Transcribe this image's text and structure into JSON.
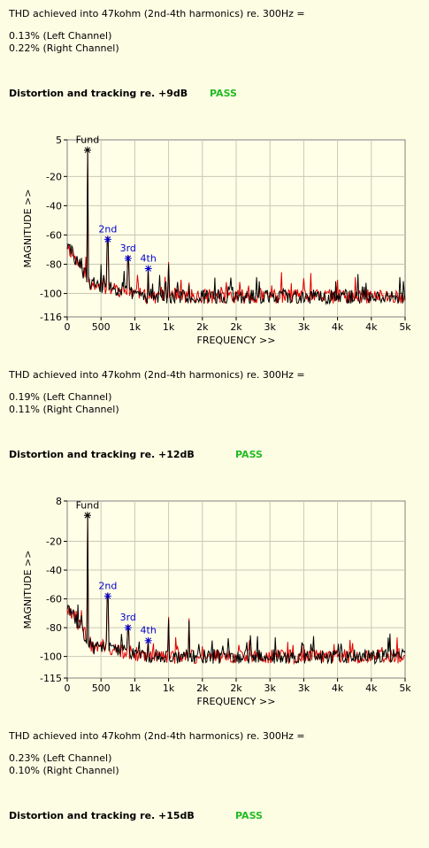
{
  "sections": [
    {
      "thd_title": "THD achieved into 47kohm (2nd-4th harmonics) re. 300Hz =",
      "left": "0.13% (Left Channel)",
      "right": "0.22% (Right Channel)",
      "heading": "Distortion and tracking re. +9dB",
      "status": "PASS"
    },
    {
      "thd_title": "THD achieved into 47kohm (2nd-4th harmonics) re. 300Hz =",
      "left": "0.19% (Left Channel)",
      "right": "0.11% (Right Channel)",
      "heading": "Distortion and tracking re. +12dB",
      "status": "PASS"
    },
    {
      "thd_title": "THD achieved into 47kohm (2nd-4th harmonics) re. 300Hz =",
      "left": "0.23% (Left Channel)",
      "right": "0.10% (Right Channel)",
      "heading": "Distortion and tracking re. +15dB",
      "status": "PASS"
    }
  ],
  "colors": {
    "background": "#fdfde4",
    "plot_area": "#ffffe8",
    "left_trace": "#e00000",
    "right_trace": "#000000",
    "marker_label": "#0000cc",
    "pass": "#22bb22"
  },
  "chart_data": [
    {
      "type": "line",
      "xlabel": "FREQUENCY >>",
      "ylabel": "MAGNITUDE >>",
      "xlim": [
        0,
        5000
      ],
      "ylim": [
        -116,
        5
      ],
      "x_ticks": [
        0,
        500,
        1000,
        1500,
        2000,
        2500,
        3000,
        3500,
        4000,
        4500,
        5000
      ],
      "x_tick_labels": [
        "0",
        "500",
        "1k",
        "1k",
        "2k",
        "2k",
        "3k",
        "3k",
        "4k",
        "4k",
        "5k"
      ],
      "y_ticks": [
        5,
        -20,
        -40,
        -60,
        -80,
        -100,
        -116
      ],
      "y_tick_labels": [
        "5",
        "-20",
        "-40",
        "-60",
        "-80",
        "-100",
        "-116"
      ],
      "grid": true,
      "noise_floor": -102,
      "markers": [
        {
          "label": "Fund",
          "x": 300,
          "y": -2
        },
        {
          "label": "2nd",
          "x": 600,
          "y": -63
        },
        {
          "label": "3rd",
          "x": 900,
          "y": -76
        },
        {
          "label": "4th",
          "x": 1200,
          "y": -83
        }
      ],
      "peaks": [
        {
          "x": 300,
          "y": -2
        },
        {
          "x": 600,
          "y": -63
        },
        {
          "x": 900,
          "y": -76
        },
        {
          "x": 1200,
          "y": -83
        },
        {
          "x": 1500,
          "y": -80
        },
        {
          "x": 1800,
          "y": -94
        }
      ],
      "series": [
        {
          "color": "#e00000",
          "seed": 11
        },
        {
          "color": "#000000",
          "seed": 29
        }
      ]
    },
    {
      "type": "line",
      "xlabel": "FREQUENCY >>",
      "ylabel": "MAGNITUDE >>",
      "xlim": [
        0,
        5000
      ],
      "ylim": [
        -115,
        8
      ],
      "x_ticks": [
        0,
        500,
        1000,
        1500,
        2000,
        2500,
        3000,
        3500,
        4000,
        4500,
        5000
      ],
      "x_tick_labels": [
        "0",
        "500",
        "1k",
        "1k",
        "2k",
        "2k",
        "3k",
        "3k",
        "4k",
        "4k",
        "5k"
      ],
      "y_ticks": [
        8,
        -20,
        -40,
        -60,
        -80,
        -100,
        -115
      ],
      "y_tick_labels": [
        "8",
        "-20",
        "-40",
        "-60",
        "-80",
        "-100",
        "-115"
      ],
      "grid": true,
      "noise_floor": -100,
      "markers": [
        {
          "label": "Fund",
          "x": 300,
          "y": -2
        },
        {
          "label": "2nd",
          "x": 600,
          "y": -58
        },
        {
          "label": "3rd",
          "x": 900,
          "y": -80
        },
        {
          "label": "4th",
          "x": 1200,
          "y": -89
        }
      ],
      "peaks": [
        {
          "x": 300,
          "y": -2
        },
        {
          "x": 600,
          "y": -58
        },
        {
          "x": 900,
          "y": -80
        },
        {
          "x": 1200,
          "y": -89
        },
        {
          "x": 1500,
          "y": -74
        },
        {
          "x": 1800,
          "y": -75
        }
      ],
      "series": [
        {
          "color": "#e00000",
          "seed": 47
        },
        {
          "color": "#000000",
          "seed": 83
        }
      ]
    }
  ]
}
